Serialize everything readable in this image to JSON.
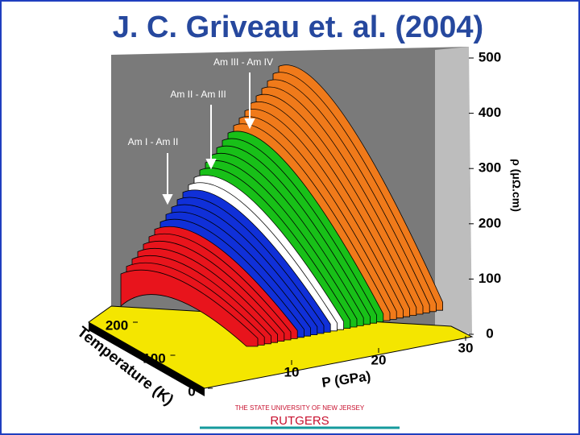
{
  "slide": {
    "title": "J. C. Griveau et. al. (2004)",
    "chart": {
      "rho_axis": {
        "label": "ρ (μΩ.cm)",
        "ticks": [
          0,
          100,
          200,
          300,
          400,
          500
        ]
      },
      "temperature_axis": {
        "label": "Temperature (K)",
        "ticks": [
          0,
          100,
          200
        ]
      },
      "pressure_axis": {
        "label": "P (GPa)",
        "ticks": [
          10,
          20,
          30
        ]
      },
      "transitions": [
        "Am III - Am IV",
        "Am II - Am III",
        "Am I - Am II"
      ]
    },
    "footer": {
      "university": "THE STATE UNIVERSITY OF NEW JERSEY",
      "name": "RUTGERS"
    }
  }
}
